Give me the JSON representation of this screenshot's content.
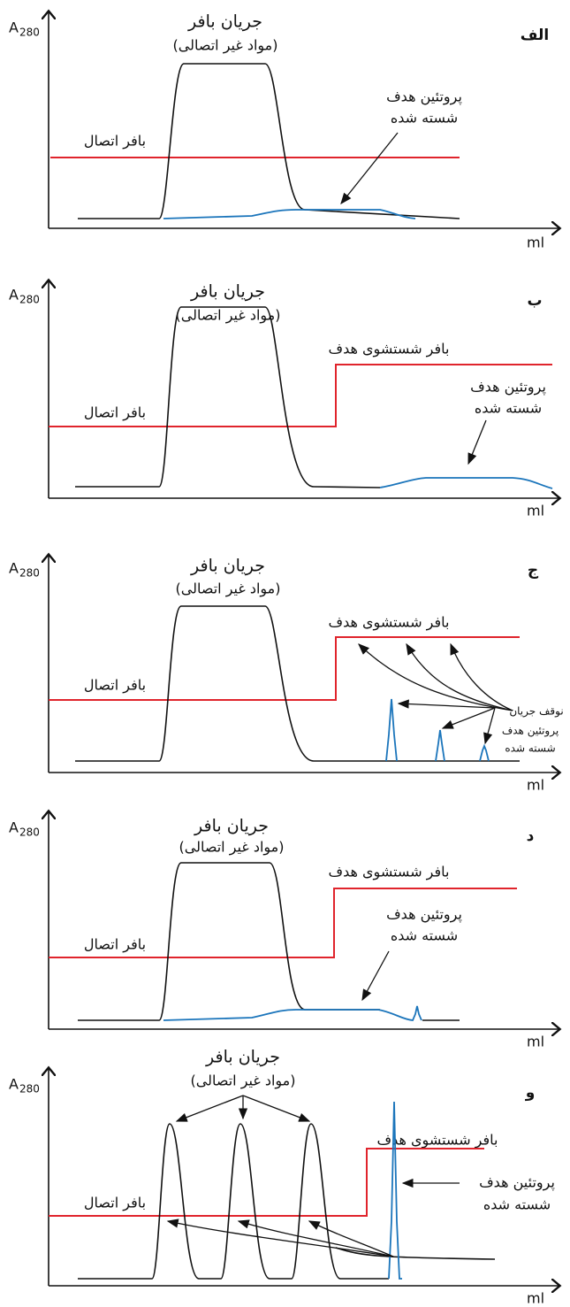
{
  "panels": [
    {
      "label": "الف",
      "y_axis": "A",
      "y_sub": "280",
      "x_axis": "ml",
      "flow": "جریان بافر",
      "flow_note": "(مواد غیر اتصالی)",
      "binding": "بافر اتصال",
      "protein": [
        "پروتئین هدف",
        "شسته شده"
      ]
    },
    {
      "label": "ب",
      "y_axis": "A",
      "y_sub": "280",
      "x_axis": "ml",
      "flow": "جریان بافر",
      "flow_note": "(مواد غیر اتصالی)",
      "wash": "بافر شستشوی هدف",
      "binding": "بافر اتصال",
      "protein": [
        "پروتئین هدف",
        "شسته شده"
      ]
    },
    {
      "label": "ج",
      "y_axis": "A",
      "y_sub": "280",
      "x_axis": "ml",
      "flow": "جریان بافر",
      "flow_note": "(مواد غیر اتصالی)",
      "wash": "بافر شستشوی هدف",
      "binding": "بافر اتصال",
      "stop": "نوقف جریان",
      "protein": [
        "پروتئین هدف",
        "شسته شده"
      ]
    },
    {
      "label": "د",
      "y_axis": "A",
      "y_sub": "280",
      "x_axis": "ml",
      "flow": "جریان بافر",
      "flow_note": "(مواد غیر اتصالی)",
      "wash": "بافر شستشوی هدف",
      "binding": "بافر اتصال",
      "protein": [
        "پروتئین هدف",
        "شسته شده"
      ]
    },
    {
      "label": "و",
      "y_axis": "A",
      "y_sub": "280",
      "x_axis": "ml",
      "flow": "جریان بافر",
      "flow_note": "(مواد غیر اتصالی)",
      "wash": "بافر شستشوی هدف",
      "binding": "بافر اتصال",
      "protein": [
        "پروتئین هدف",
        "شسته شده"
      ]
    }
  ]
}
